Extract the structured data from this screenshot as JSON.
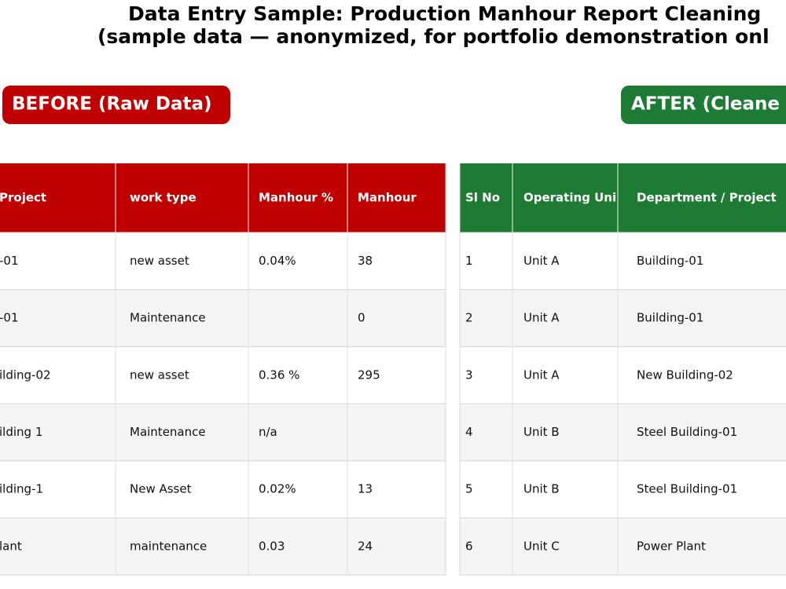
{
  "title": {
    "line1": "Data Entry Sample: Production Manhour Report Cleaning",
    "line2": "(sample data — anonymized, for portfolio demonstration onl"
  },
  "before": {
    "badge": "BEFORE (Raw Data)",
    "header": [
      "Project",
      "work type",
      "Manhour %",
      "Manhour"
    ],
    "rows": [
      [
        "-01",
        "new asset",
        "0.04%",
        "38"
      ],
      [
        "-01",
        "Maintenance",
        null,
        "0"
      ],
      [
        "ilding-02",
        "new asset",
        "0.36 %",
        "295"
      ],
      [
        "ilding 1",
        "Maintenance",
        "n/a",
        null
      ],
      [
        "ilding-1",
        "New Asset",
        "0.02%",
        "13"
      ],
      [
        "lant",
        "maintenance",
        "0.03",
        "24"
      ]
    ]
  },
  "after": {
    "badge": "AFTER (Cleane",
    "header": [
      "Sl No",
      "Operating Uni",
      "Department / Project"
    ],
    "rows": [
      [
        "1",
        "Unit A",
        "Building-01"
      ],
      [
        "2",
        "Unit A",
        "Building-01"
      ],
      [
        "3",
        "Unit A",
        "New Building-02"
      ],
      [
        "4",
        "Unit B",
        "Steel Building-01"
      ],
      [
        "5",
        "Unit B",
        "Steel Building-01"
      ],
      [
        "6",
        "Unit C",
        "Power Plant"
      ]
    ]
  }
}
